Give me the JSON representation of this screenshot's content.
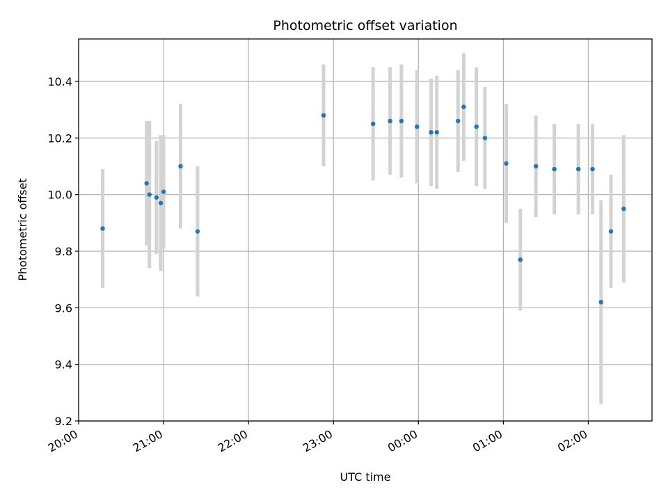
{
  "chart_data": {
    "type": "scatter",
    "title": "Photometric offset variation",
    "xlabel": "UTC time",
    "ylabel": "Photometric offset",
    "x_axis_kind": "time",
    "xlim": [
      "20:00",
      "02:45"
    ],
    "ylim": [
      9.2,
      10.55
    ],
    "x_ticks": [
      "20:00",
      "21:00",
      "22:00",
      "23:00",
      "00:00",
      "01:00",
      "02:00"
    ],
    "y_ticks": [
      "9.2",
      "9.4",
      "9.6",
      "9.8",
      "10.0",
      "10.2",
      "10.4"
    ],
    "grid": true,
    "legend": "none",
    "colors": {
      "point": "#1f77b4",
      "errorbar": "#d3d3d3",
      "grid": "#b0b0b0"
    },
    "series": [
      {
        "points": [
          {
            "x": "20:17",
            "y": 9.88,
            "err": 0.21
          },
          {
            "x": "20:48",
            "y": 10.04,
            "err": 0.22
          },
          {
            "x": "20:50",
            "y": 10.0,
            "err": 0.26
          },
          {
            "x": "20:55",
            "y": 9.99,
            "err": 0.2
          },
          {
            "x": "20:58",
            "y": 9.97,
            "err": 0.24
          },
          {
            "x": "21:00",
            "y": 10.01,
            "err": 0.2
          },
          {
            "x": "21:12",
            "y": 10.1,
            "err": 0.22
          },
          {
            "x": "21:24",
            "y": 9.87,
            "err": 0.23
          },
          {
            "x": "22:53",
            "y": 10.28,
            "err": 0.18
          },
          {
            "x": "23:28",
            "y": 10.25,
            "err": 0.2
          },
          {
            "x": "23:40",
            "y": 10.26,
            "err": 0.19
          },
          {
            "x": "23:48",
            "y": 10.26,
            "err": 0.2
          },
          {
            "x": "23:59",
            "y": 10.24,
            "err": 0.2
          },
          {
            "x": "00:09",
            "y": 10.22,
            "err": 0.19
          },
          {
            "x": "00:13",
            "y": 10.22,
            "err": 0.2
          },
          {
            "x": "00:28",
            "y": 10.26,
            "err": 0.18
          },
          {
            "x": "00:32",
            "y": 10.31,
            "err": 0.19
          },
          {
            "x": "00:41",
            "y": 10.24,
            "err": 0.21
          },
          {
            "x": "00:47",
            "y": 10.2,
            "err": 0.18
          },
          {
            "x": "01:02",
            "y": 10.11,
            "err": 0.21
          },
          {
            "x": "01:12",
            "y": 9.77,
            "err": 0.18
          },
          {
            "x": "01:23",
            "y": 10.1,
            "err": 0.18
          },
          {
            "x": "01:36",
            "y": 10.09,
            "err": 0.16
          },
          {
            "x": "01:53",
            "y": 10.09,
            "err": 0.16
          },
          {
            "x": "02:03",
            "y": 10.09,
            "err": 0.16
          },
          {
            "x": "02:09",
            "y": 9.62,
            "err": 0.36
          },
          {
            "x": "02:16",
            "y": 9.87,
            "err": 0.2
          },
          {
            "x": "02:25",
            "y": 9.95,
            "err": 0.26
          }
        ]
      }
    ]
  }
}
